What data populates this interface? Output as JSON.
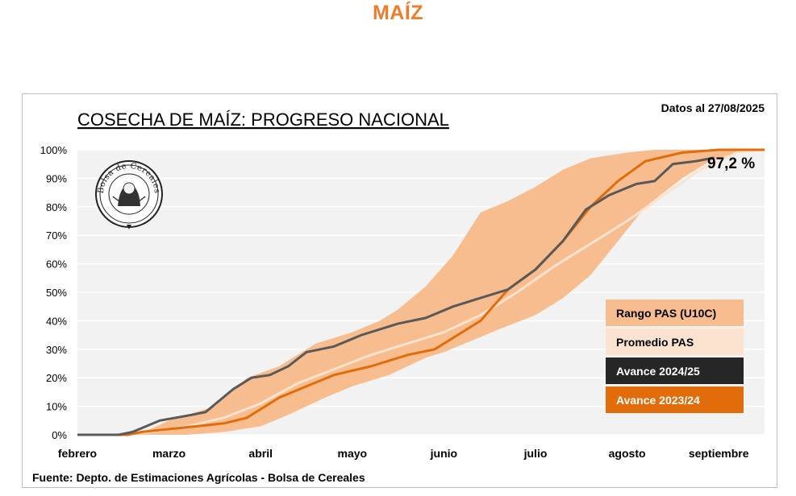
{
  "page": {
    "title": "MAÍZ"
  },
  "chart_data": {
    "type": "line",
    "title": "COSECHA DE MAÍZ: PROGRESO NACIONAL",
    "date_note": "Datos al 27/08/2025",
    "source": "Fuente: Depto. de Estimaciones Agrícolas - Bolsa de Cereales",
    "logo_text": "Bolsa de Cereales",
    "x_categories": [
      "febrero",
      "marzo",
      "abril",
      "mayo",
      "junio",
      "julio",
      "agosto",
      "septiembre"
    ],
    "y_ticks": [
      "0%",
      "10%",
      "20%",
      "30%",
      "40%",
      "50%",
      "60%",
      "70%",
      "80%",
      "90%",
      "100%"
    ],
    "ylim": [
      0,
      100
    ],
    "annotation": "97,2 %",
    "colors": {
      "range": "#f7bd8e",
      "average": "#fbe3cf",
      "current": "#595959",
      "previous": "#e36c0a",
      "plot_bg": "#f2f2f2"
    },
    "legend": [
      {
        "label": "Rango PAS (U10C)",
        "bg": "#f7bd8e",
        "fg": "#000000"
      },
      {
        "label": "Promedio PAS",
        "bg": "#fbe3cf",
        "fg": "#000000"
      },
      {
        "label": "Avance 2024/25",
        "bg": "#262626",
        "fg": "#ffffff"
      },
      {
        "label": "Avance 2023/24",
        "bg": "#e36c0a",
        "fg": "#ffffff"
      }
    ],
    "series": [
      {
        "name": "Rango PAS (U10C) max",
        "x": [
          0,
          0.4,
          0.55,
          0.8,
          1.0,
          1.5,
          1.85,
          2.2,
          2.6,
          3.0,
          3.3,
          3.5,
          3.8,
          4.1,
          4.4,
          4.7,
          5.0,
          5.3,
          5.6,
          6.0,
          6.3,
          6.6,
          7.0,
          7.5
        ],
        "y": [
          0,
          0,
          0,
          2,
          5,
          10,
          20,
          24,
          32,
          36,
          40,
          44,
          52,
          63,
          78,
          82,
          87,
          93,
          97,
          99,
          100,
          100,
          100,
          100
        ]
      },
      {
        "name": "Rango PAS (U10C) min",
        "x": [
          0,
          0.5,
          0.8,
          1.2,
          1.6,
          2.0,
          2.3,
          2.7,
          3.0,
          3.4,
          3.8,
          4.0,
          4.3,
          4.6,
          5.0,
          5.3,
          5.6,
          5.85,
          6.2,
          6.6,
          6.9,
          7.2,
          7.5
        ],
        "y": [
          0,
          0,
          0,
          0,
          1,
          3,
          7,
          13,
          17,
          21,
          27,
          29,
          33,
          37,
          42,
          48,
          56,
          66,
          80,
          90,
          96,
          99,
          100
        ]
      },
      {
        "name": "Promedio PAS",
        "x": [
          0,
          0.4,
          0.8,
          1.2,
          1.6,
          2.0,
          2.4,
          2.8,
          3.2,
          3.6,
          4.0,
          4.4,
          4.8,
          5.2,
          5.6,
          6.0,
          6.4,
          6.8,
          7.2,
          7.5
        ],
        "y": [
          0,
          0,
          1,
          3,
          6,
          11,
          18,
          23,
          28,
          32,
          36,
          42,
          50,
          59,
          67,
          75,
          84,
          93,
          99,
          100
        ]
      },
      {
        "name": "Avance 2024/25",
        "x": [
          0,
          0.45,
          0.6,
          0.9,
          1.25,
          1.4,
          1.7,
          1.9,
          2.1,
          2.3,
          2.5,
          2.8,
          3.1,
          3.5,
          3.8,
          4.1,
          4.4,
          4.7,
          5.0,
          5.3,
          5.55,
          5.8,
          6.1,
          6.3,
          6.5,
          6.75,
          6.95
        ],
        "y": [
          0,
          0,
          1,
          5,
          7,
          8,
          16,
          20,
          21,
          24,
          29,
          31,
          35,
          39,
          41,
          45,
          48,
          51,
          58,
          68,
          79,
          84,
          88,
          89,
          95,
          96,
          97.2
        ]
      },
      {
        "name": "Avance 2023/24",
        "x": [
          0,
          0.55,
          0.7,
          1.0,
          1.3,
          1.6,
          1.85,
          2.2,
          2.5,
          2.8,
          3.2,
          3.6,
          3.9,
          4.1,
          4.4,
          4.7,
          5.0,
          5.3,
          5.6,
          5.9,
          6.2,
          6.6,
          7.0,
          7.5
        ],
        "y": [
          0,
          0,
          1,
          2,
          3,
          4,
          6,
          13,
          17,
          21,
          24,
          28,
          30,
          34,
          40,
          51,
          58,
          68,
          80,
          89,
          96,
          99,
          100,
          100
        ]
      }
    ]
  }
}
